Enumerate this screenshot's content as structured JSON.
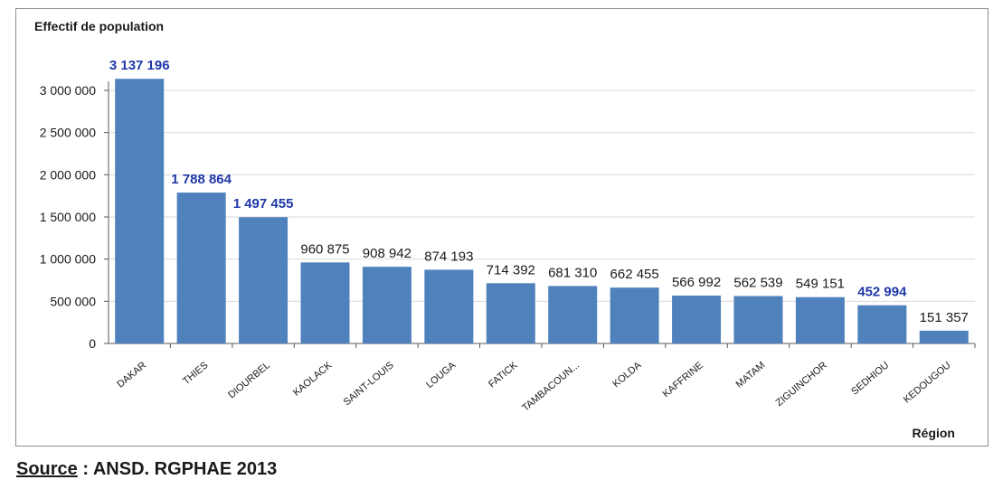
{
  "chart_data": {
    "type": "bar",
    "ylabel": "Effectif de population",
    "xlabel": "Région",
    "categories": [
      "DAKAR",
      "THIES",
      "DIOURBEL",
      "KAOLACK",
      "SAINT-LOUIS",
      "LOUGA",
      "FATICK",
      "TAMBACOUN...",
      "KOLDA",
      "KAFFRINE",
      "MATAM",
      "ZIGUINCHOR",
      "SEDHIOU",
      "KEDOUGOU"
    ],
    "values": [
      3137196,
      1788864,
      1497455,
      960875,
      908942,
      874193,
      714392,
      681310,
      662455,
      566992,
      562539,
      549151,
      452994,
      151357
    ],
    "value_labels": [
      "3 137 196",
      "1 788 864",
      "1 497 455",
      "960 875",
      "908 942",
      "874 193",
      "714 392",
      "681 310",
      "662 455",
      "566 992",
      "562 539",
      "549 151",
      "452 994",
      "151 357"
    ],
    "highlighted_labels": [
      0,
      1,
      2,
      12
    ],
    "yticks": [
      0,
      500000,
      1000000,
      1500000,
      2000000,
      2500000,
      3000000
    ],
    "ytick_labels": [
      "0",
      "500 000",
      "1 000 000",
      "1 500 000",
      "2 000 000",
      "2 500 000",
      "3 000 000"
    ],
    "ylim": [
      0,
      3000000
    ],
    "grid": true,
    "colors": {
      "bar": "#4f81bd",
      "label_highlight": "#1f37a8",
      "label_default": "#1a1a1a",
      "grid": "#d9d9d9"
    }
  },
  "source": {
    "prefix": "Source",
    "text": " : ANSD. RGPHAE 2013"
  }
}
